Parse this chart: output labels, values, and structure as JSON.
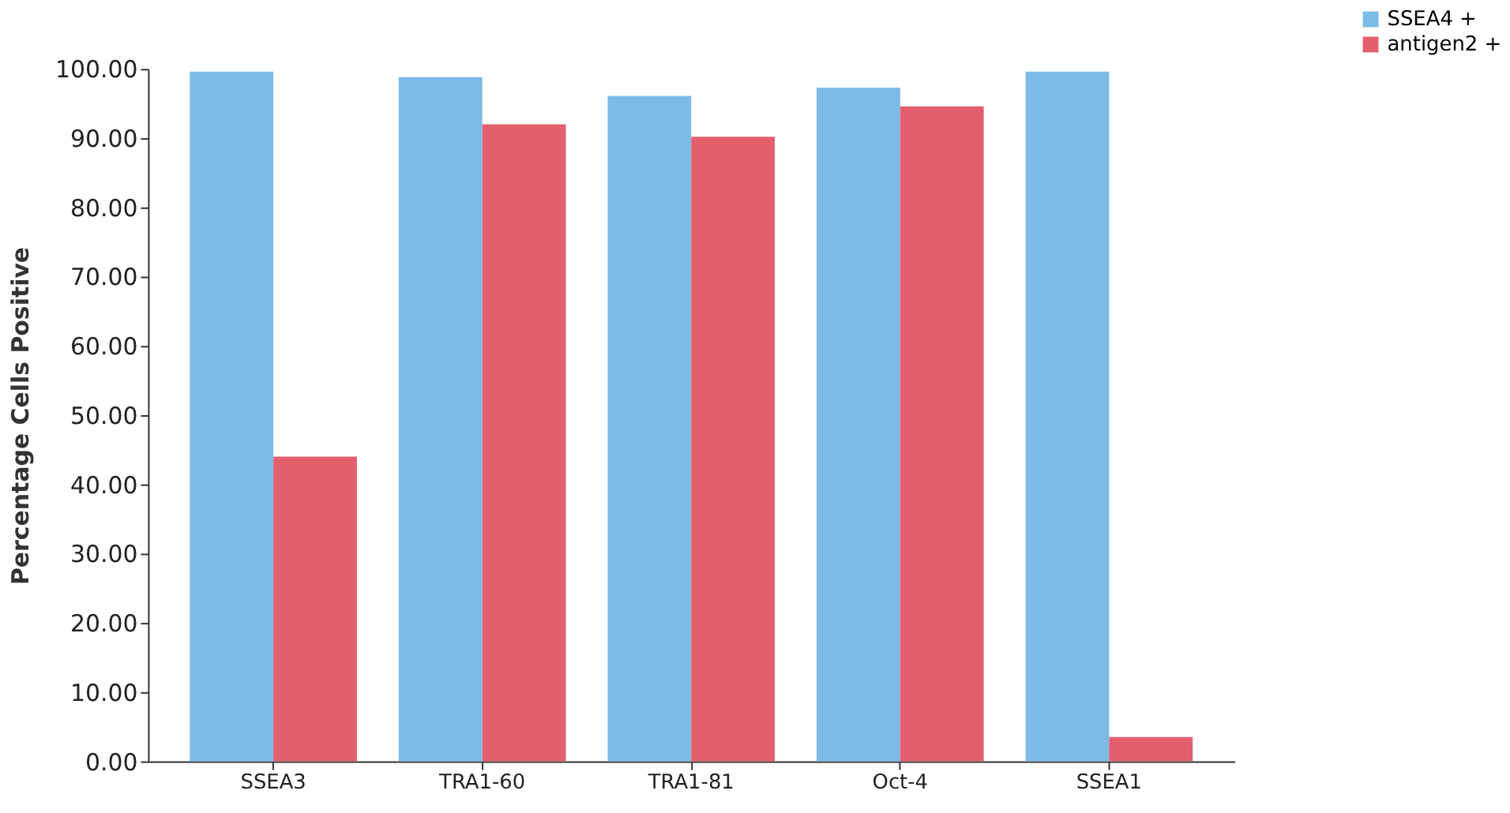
{
  "chart_data": {
    "type": "bar",
    "ylabel": "Percentage Cells Positive",
    "categories": [
      "SSEA3",
      "TRA1-60",
      "TRA1-81",
      "Oct-4",
      "SSEA1"
    ],
    "series": [
      {
        "name": "SSEA4 +",
        "color": "#7dbbe6",
        "values": [
          99.6,
          98.8,
          96.1,
          97.3,
          99.6
        ]
      },
      {
        "name": "antigen2 +",
        "color": "#e45f6e",
        "values": [
          44.0,
          92.0,
          90.2,
          94.6,
          3.5
        ]
      }
    ],
    "ylim": [
      0,
      100
    ],
    "yticks": [
      {
        "value": 0,
        "label": "0.00"
      },
      {
        "value": 10,
        "label": "10.00"
      },
      {
        "value": 20,
        "label": "20.00"
      },
      {
        "value": 30,
        "label": "30.00"
      },
      {
        "value": 40,
        "label": "40.00"
      },
      {
        "value": 50,
        "label": "50.00"
      },
      {
        "value": 60,
        "label": "60.00"
      },
      {
        "value": 70,
        "label": "70.00"
      },
      {
        "value": 80,
        "label": "80.00"
      },
      {
        "value": 90,
        "label": "90.00"
      },
      {
        "value": 100,
        "label": "100.00"
      }
    ],
    "grid": false,
    "legend": "top right"
  }
}
